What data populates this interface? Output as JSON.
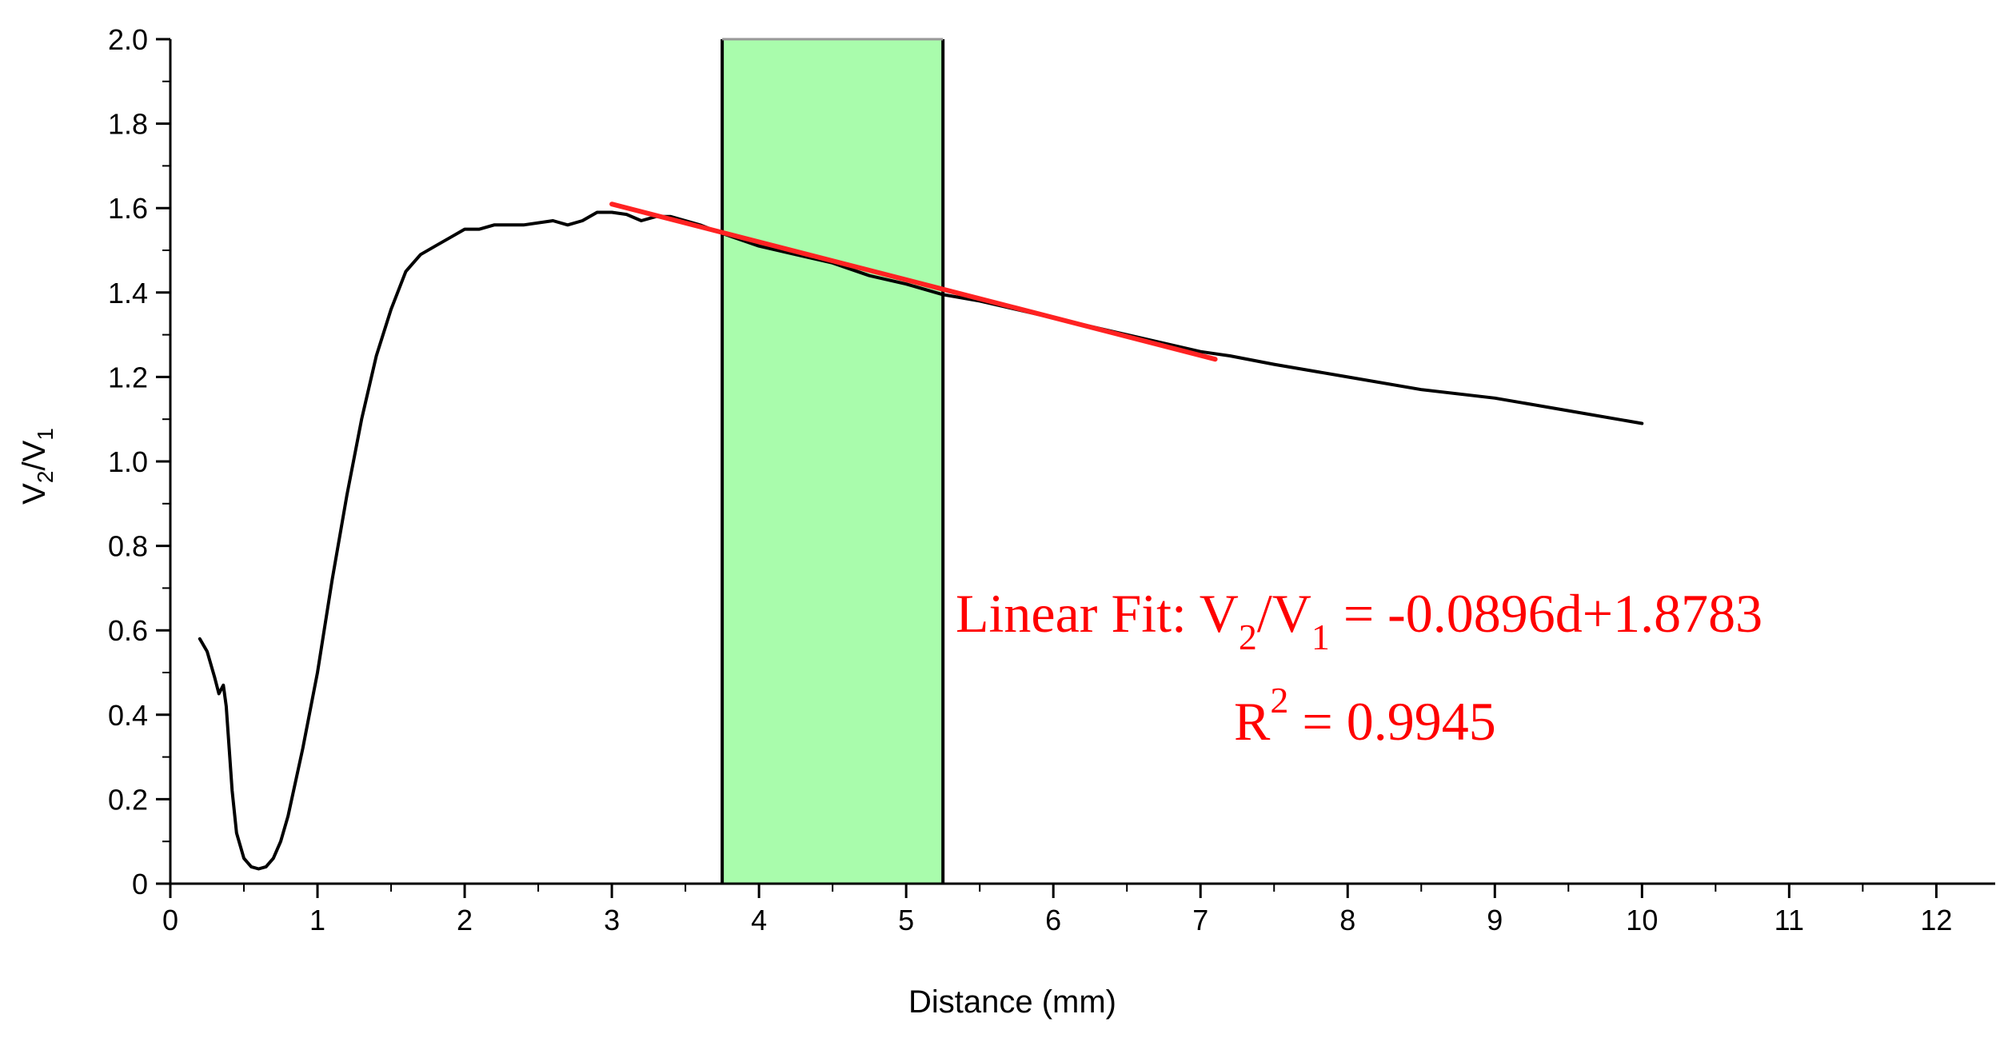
{
  "chart_data": {
    "type": "line",
    "title": "",
    "xlabel": "Distance (mm)",
    "ylabel": {
      "main": "V",
      "sub1": "2",
      "mid": "/V",
      "sub2": "1"
    },
    "xlim": [
      0,
      12.4
    ],
    "ylim": [
      0,
      2.0
    ],
    "xticks": [
      0,
      1,
      2,
      3,
      4,
      5,
      6,
      7,
      8,
      9,
      10,
      11,
      12
    ],
    "xtick_labels": [
      "0",
      "1",
      "2",
      "3",
      "4",
      "5",
      "6",
      "7",
      "8",
      "9",
      "10",
      "11",
      "12"
    ],
    "yticks": [
      0,
      0.2,
      0.4,
      0.6,
      0.8,
      1.0,
      1.2,
      1.4,
      1.6,
      1.8,
      2.0
    ],
    "ytick_labels": [
      "0",
      "0.2",
      "0.4",
      "0.6",
      "0.8",
      "1.0",
      "1.2",
      "1.4",
      "1.6",
      "1.8",
      "2.0"
    ],
    "grid": false,
    "highlight_region": {
      "x": [
        3.75,
        5.25
      ],
      "color": "#a9fcac"
    },
    "series": [
      {
        "color": "#000000",
        "x": [
          0.2,
          0.25,
          0.3,
          0.33,
          0.36,
          0.38,
          0.4,
          0.42,
          0.45,
          0.5,
          0.55,
          0.6,
          0.65,
          0.7,
          0.75,
          0.8,
          0.9,
          1.0,
          1.1,
          1.2,
          1.3,
          1.4,
          1.5,
          1.6,
          1.7,
          1.8,
          1.9,
          2.0,
          2.1,
          2.2,
          2.4,
          2.6,
          2.7,
          2.8,
          2.9,
          3.0,
          3.1,
          3.2,
          3.3,
          3.4,
          3.5,
          3.6,
          3.75,
          4.0,
          4.25,
          4.5,
          4.75,
          5.0,
          5.25,
          5.5,
          6.0,
          6.5,
          7.0,
          7.2,
          7.5,
          8.0,
          8.5,
          9.0,
          9.5,
          10.0
        ],
        "y": [
          0.58,
          0.55,
          0.49,
          0.45,
          0.47,
          0.42,
          0.32,
          0.22,
          0.12,
          0.06,
          0.04,
          0.035,
          0.04,
          0.06,
          0.1,
          0.16,
          0.32,
          0.5,
          0.72,
          0.92,
          1.1,
          1.25,
          1.36,
          1.45,
          1.49,
          1.51,
          1.53,
          1.55,
          1.55,
          1.56,
          1.56,
          1.57,
          1.56,
          1.57,
          1.59,
          1.59,
          1.585,
          1.57,
          1.58,
          1.58,
          1.57,
          1.56,
          1.54,
          1.51,
          1.49,
          1.47,
          1.44,
          1.42,
          1.395,
          1.38,
          1.34,
          1.3,
          1.26,
          1.25,
          1.23,
          1.2,
          1.17,
          1.15,
          1.12,
          1.09
        ]
      },
      {
        "color": "#ff2222",
        "x": [
          3.0,
          7.1
        ],
        "y": [
          1.6095,
          1.2421
        ]
      }
    ],
    "annotations": {
      "fit_color": "#ff0000",
      "line1": {
        "prefix": "Linear Fit: V",
        "sub1": "2",
        "mid": "/V",
        "sub2": "1",
        "suffix": " = -0.0896d+1.8783"
      },
      "line2": {
        "main": "R",
        "sup": "2",
        "suffix": " = 0.9945"
      }
    }
  }
}
